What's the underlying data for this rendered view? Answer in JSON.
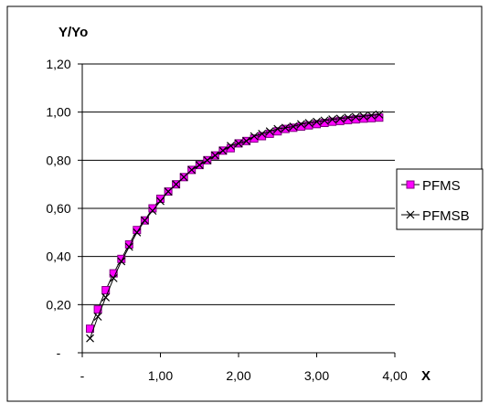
{
  "chart_data": {
    "type": "line",
    "title": "",
    "ylabel": "Y/Yo",
    "xlabel": "X",
    "xlim": [
      0,
      4
    ],
    "ylim": [
      0,
      1.2
    ],
    "xticks": [
      {
        "value": 0,
        "label": "-"
      },
      {
        "value": 1,
        "label": "1,00"
      },
      {
        "value": 2,
        "label": "2,00"
      },
      {
        "value": 3,
        "label": "3,00"
      },
      {
        "value": 4,
        "label": "4,00"
      }
    ],
    "yticks": [
      {
        "value": 0,
        "label": "-"
      },
      {
        "value": 0.2,
        "label": "0,20"
      },
      {
        "value": 0.4,
        "label": "0,40"
      },
      {
        "value": 0.6,
        "label": "0,60"
      },
      {
        "value": 0.8,
        "label": "0,80"
      },
      {
        "value": 1.0,
        "label": "1,00"
      },
      {
        "value": 1.2,
        "label": "1,20"
      }
    ],
    "grid": "horizontal",
    "legend_position": "right",
    "x": [
      0.1,
      0.2,
      0.3,
      0.4,
      0.5,
      0.6,
      0.7,
      0.8,
      0.9,
      1.0,
      1.1,
      1.2,
      1.3,
      1.4,
      1.5,
      1.6,
      1.7,
      1.8,
      1.9,
      2.0,
      2.1,
      2.2,
      2.3,
      2.4,
      2.5,
      2.6,
      2.7,
      2.8,
      2.9,
      3.0,
      3.1,
      3.2,
      3.3,
      3.4,
      3.5,
      3.6,
      3.7,
      3.8
    ],
    "series": [
      {
        "name": "PFMS",
        "marker": "square",
        "color": "#ff00ff",
        "values": [
          0.1,
          0.18,
          0.26,
          0.33,
          0.39,
          0.45,
          0.51,
          0.55,
          0.6,
          0.64,
          0.67,
          0.7,
          0.73,
          0.76,
          0.78,
          0.8,
          0.82,
          0.84,
          0.85,
          0.87,
          0.88,
          0.89,
          0.9,
          0.91,
          0.92,
          0.93,
          0.935,
          0.94,
          0.945,
          0.95,
          0.955,
          0.96,
          0.963,
          0.967,
          0.97,
          0.973,
          0.975,
          0.977
        ]
      },
      {
        "name": "PFMSB",
        "marker": "x",
        "color": "#000000",
        "values": [
          0.06,
          0.15,
          0.23,
          0.31,
          0.38,
          0.44,
          0.5,
          0.55,
          0.59,
          0.63,
          0.67,
          0.7,
          0.73,
          0.76,
          0.78,
          0.8,
          0.82,
          0.84,
          0.86,
          0.87,
          0.88,
          0.9,
          0.91,
          0.92,
          0.93,
          0.935,
          0.94,
          0.95,
          0.955,
          0.96,
          0.965,
          0.97,
          0.973,
          0.977,
          0.98,
          0.983,
          0.986,
          0.99
        ]
      }
    ]
  }
}
